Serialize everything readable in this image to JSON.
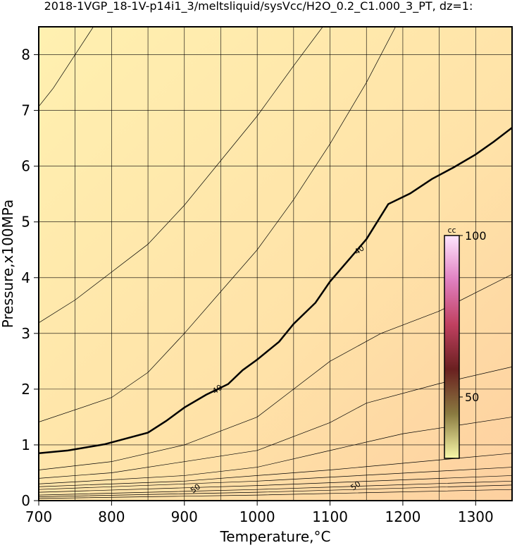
{
  "chart_data": {
    "type": "contour",
    "title": "2018-1VGP_18-1V-p14i1_3/meltsliquid/sysVcc/H2O_0.2_C1.000_3_PT, dz=1:",
    "x_label": "Temperature,°C",
    "y_label": "Pressure,x100MPa",
    "xlim": [
      700,
      1350
    ],
    "ylim": [
      0,
      8.5
    ],
    "xticks": [
      700,
      800,
      900,
      1000,
      1100,
      1200,
      1300
    ],
    "yticks": [
      0,
      1,
      2,
      3,
      4,
      5,
      6,
      7,
      8
    ],
    "xgrid": [
      700,
      750,
      800,
      850,
      900,
      950,
      1000,
      1050,
      1100,
      1150,
      1200,
      1250,
      1300
    ],
    "grid": true,
    "line_color": "#000000",
    "series": [
      {
        "x": [
          700,
          720,
          740,
          760,
          775
        ],
        "values": [
          7.07,
          7.4,
          7.8,
          8.2,
          8.5
        ]
      },
      {
        "x": [
          700,
          750,
          800,
          850,
          900,
          950,
          1000,
          1050,
          1090
        ],
        "values": [
          3.19,
          3.6,
          4.1,
          4.6,
          5.3,
          6.1,
          6.9,
          7.8,
          8.5
        ]
      },
      {
        "x": [
          700,
          800,
          850,
          900,
          950,
          1000,
          1050,
          1100,
          1150,
          1190
        ],
        "values": [
          1.41,
          1.85,
          2.3,
          3.0,
          3.75,
          4.5,
          5.4,
          6.4,
          7.5,
          8.5
        ]
      },
      {
        "x": [
          700,
          740,
          790,
          850,
          875,
          900,
          930,
          960,
          980,
          1000,
          1030,
          1050,
          1080,
          1100,
          1125,
          1150,
          1180,
          1210,
          1240,
          1270,
          1300,
          1325,
          1350
        ],
        "values": [
          0.85,
          0.9,
          1.01,
          1.22,
          1.43,
          1.67,
          1.9,
          2.09,
          2.34,
          2.53,
          2.85,
          3.17,
          3.55,
          3.93,
          4.31,
          4.69,
          5.32,
          5.51,
          5.77,
          5.98,
          6.21,
          6.44,
          6.69
        ],
        "bold": true
      },
      {
        "x": [
          700,
          800,
          900,
          1000,
          1050,
          1100,
          1170,
          1250,
          1350
        ],
        "values": [
          0.55,
          0.7,
          1.0,
          1.5,
          2.0,
          2.5,
          3.0,
          3.4,
          4.06
        ]
      },
      {
        "x": [
          700,
          800,
          900,
          1000,
          1100,
          1150,
          1250,
          1350
        ],
        "values": [
          0.4,
          0.5,
          0.7,
          0.9,
          1.4,
          1.75,
          2.1,
          2.4
        ]
      },
      {
        "x": [
          700,
          900,
          1000,
          1100,
          1200,
          1350
        ],
        "values": [
          0.3,
          0.45,
          0.6,
          0.9,
          1.2,
          1.5
        ]
      },
      {
        "x": [
          700,
          900,
          1100,
          1350
        ],
        "values": [
          0.25,
          0.35,
          0.55,
          0.85
        ]
      },
      {
        "x": [
          700,
          1000,
          1350
        ],
        "values": [
          0.2,
          0.35,
          0.6
        ]
      },
      {
        "x": [
          700,
          1000,
          1350
        ],
        "values": [
          0.15,
          0.27,
          0.45
        ]
      },
      {
        "x": [
          700,
          1000,
          1350
        ],
        "values": [
          0.1,
          0.2,
          0.35
        ]
      },
      {
        "x": [
          700,
          1000,
          1350
        ],
        "values": [
          0.07,
          0.15,
          0.28
        ]
      },
      {
        "x": [
          700,
          1000,
          1350
        ],
        "values": [
          0.04,
          0.1,
          0.2
        ]
      }
    ],
    "annotations": [
      {
        "text": "40",
        "x": 945,
        "y": 2.0
      },
      {
        "text": "40",
        "x": 1140,
        "y": 4.5
      },
      {
        "text": "50",
        "x": 915,
        "y": 0.22
      },
      {
        "text": "50",
        "x": 1135,
        "y": 0.27
      }
    ],
    "colorbar": {
      "label": "cc",
      "lim": [
        31,
        100
      ],
      "ticks": [
        50,
        100
      ],
      "colormap": [
        "#f8f8a8",
        "#8a7a40",
        "#6a2020",
        "#c04060",
        "#e080c0",
        "#ffe6ff"
      ]
    }
  }
}
